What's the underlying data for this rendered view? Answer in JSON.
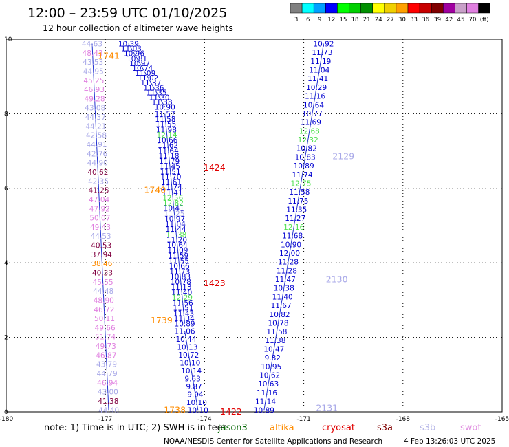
{
  "header": {
    "title": "12:00 – 23:59 UTC 01/10/2025",
    "subtitle": "12 hour collection of altimeter wave heights"
  },
  "legend": {
    "colors": [
      "#808080",
      "#00ffff",
      "#00a0ff",
      "#0000ff",
      "#00ff00",
      "#00d000",
      "#009000",
      "#ffff00",
      "#f0d000",
      "#ffa000",
      "#ff0000",
      "#c80000",
      "#800000",
      "#a000a0",
      "#c8a0c8",
      "#e080e0",
      "#000000"
    ],
    "labels": [
      "3",
      "6",
      "9",
      "12",
      "15",
      "18",
      "21",
      "24",
      "27",
      "30",
      "33",
      "36",
      "39",
      "42",
      "45",
      "70",
      "(ft)"
    ]
  },
  "axes": {
    "x_ticks": [
      "-180",
      "-177",
      "-174",
      "-171",
      "-168",
      "-165"
    ],
    "y_ticks": [
      "0",
      "2",
      "4",
      "6",
      "8",
      "10"
    ]
  },
  "footer": {
    "note": "note:  1) Time is in UTC;  2) SWH is in feet",
    "satellites": [
      {
        "name": "jason3",
        "color": "#006400"
      },
      {
        "name": "altika",
        "color": "#ff8c00"
      },
      {
        "name": "cryosat",
        "color": "#e00000"
      },
      {
        "name": "s3a",
        "color": "#800000"
      },
      {
        "name": "s3b",
        "color": "#b8b8e8"
      },
      {
        "name": "swot",
        "color": "#e090e0"
      }
    ],
    "credit": "NOAA/NESDIS Center for Satellite Applications and Research",
    "timestamp": "4 Feb 13:26:03 UTC 2025"
  },
  "chart_data": {
    "type": "scatter",
    "title": "12:00 – 23:59 UTC 01/10/2025",
    "subtitle": "12 hour collection of altimeter wave heights",
    "xlim": [
      -180,
      -165
    ],
    "ylim": [
      0,
      10
    ],
    "grid": true,
    "point_colors": {
      "B": "#0000d0",
      "G": "#50e050",
      "L": "#a8a8e8",
      "P": "#e080e0",
      "M": "#800040",
      "O": "#ff8c00",
      "R": "#e00000"
    },
    "tracks": [
      {
        "x_start": -176.3,
        "x_end": -175.2,
        "y_start": 9.88,
        "y_end": 8.18,
        "data": [
          [
            "10.39",
            "B"
          ],
          [
            "11.03",
            "B"
          ],
          [
            "10.96",
            "B"
          ],
          [
            "10.81",
            "B"
          ],
          [
            "10.97",
            "B"
          ],
          [
            "10.74",
            "B"
          ],
          [
            "11.09",
            "B"
          ],
          [
            "11.02",
            "B"
          ],
          [
            "11.37",
            "B"
          ],
          [
            "11.36",
            "B"
          ],
          [
            "11.35",
            "B"
          ],
          [
            "11.30",
            "B"
          ],
          [
            "11.38",
            "B"
          ],
          [
            "10.90",
            "B"
          ]
        ]
      },
      {
        "x_start": -175.2,
        "x_end": -174.6,
        "y_start": 8.0,
        "y_end": 2.37,
        "data": [
          [
            "11.57",
            "B"
          ],
          [
            "11.58",
            "B"
          ],
          [
            "11.55",
            "B"
          ],
          [
            "11.98",
            "B"
          ],
          [
            "12.14",
            "G"
          ],
          [
            "10.66",
            "B"
          ],
          [
            "11.62",
            "B"
          ],
          [
            "11.64",
            "B"
          ],
          [
            "11.18",
            "B"
          ],
          [
            "11.79",
            "B"
          ],
          [
            "11.45",
            "B"
          ],
          [
            "11.51",
            "B"
          ],
          [
            "11.70",
            "B"
          ],
          [
            "11.61",
            "B"
          ],
          [
            "11.74",
            "B"
          ],
          [
            "11.41",
            "B"
          ],
          [
            "12.56",
            "G"
          ],
          [
            "12.82",
            "G"
          ],
          [
            "10.41",
            "B"
          ],
          [
            "11.25",
            "L"
          ],
          [
            "10.97",
            "B"
          ],
          [
            "11.04",
            "B"
          ],
          [
            "11.44",
            "B"
          ],
          [
            "11.38",
            "G"
          ],
          [
            "11.20",
            "B"
          ],
          [
            "10.64",
            "B"
          ],
          [
            "11.09",
            "B"
          ],
          [
            "11.59",
            "B"
          ],
          [
            "11.55",
            "B"
          ],
          [
            "10.66",
            "B"
          ],
          [
            "11.73",
            "B"
          ],
          [
            "10.83",
            "B"
          ],
          [
            "10.78",
            "B"
          ],
          [
            "11.13",
            "B"
          ],
          [
            "11.40",
            "B"
          ],
          [
            "12.29",
            "G"
          ],
          [
            "11.56",
            "B"
          ],
          [
            "11.51",
            "B"
          ],
          [
            "11.43",
            "B"
          ],
          [
            "11.34",
            "B"
          ],
          [
            "10.89",
            "B"
          ]
        ]
      },
      {
        "x_start": -174.6,
        "x_end": -174.2,
        "y_start": 2.17,
        "y_end": 0.05,
        "data": [
          [
            "11.06",
            "B"
          ],
          [
            "10.44",
            "B"
          ],
          [
            "10.13",
            "B"
          ],
          [
            "10.72",
            "B"
          ],
          [
            "10.10",
            "B"
          ],
          [
            "10.14",
            "B"
          ],
          [
            "9.63",
            "B"
          ],
          [
            "9.87",
            "B"
          ],
          [
            "9.94",
            "B"
          ],
          [
            "10.10",
            "B"
          ],
          [
            "10.10",
            "B"
          ]
        ]
      },
      {
        "x_start": -177.4,
        "x_end": -176.9,
        "y_start": 9.88,
        "y_end": 0.05,
        "data": [
          [
            "44.63",
            "L"
          ],
          [
            "48.43",
            "P"
          ],
          [
            "43.53",
            "L"
          ],
          [
            "44.95",
            "L"
          ],
          [
            "45.25",
            "P"
          ],
          [
            "46.93",
            "P"
          ],
          [
            "49.28",
            "P"
          ],
          [
            "43.08",
            "L"
          ],
          [
            "44.37",
            "L"
          ],
          [
            "44.21",
            "L"
          ],
          [
            "42.58",
            "L"
          ],
          [
            "44.91",
            "L"
          ],
          [
            "42.76",
            "L"
          ],
          [
            "44.90",
            "L"
          ],
          [
            "40.62",
            "M"
          ],
          [
            "42.35",
            "L"
          ],
          [
            "41.25",
            "M"
          ],
          [
            "47.04",
            "P"
          ],
          [
            "47.92",
            "P"
          ],
          [
            "50.07",
            "P"
          ],
          [
            "49.43",
            "P"
          ],
          [
            "44.53",
            "L"
          ],
          [
            "40.53",
            "M"
          ],
          [
            "37.94",
            "M"
          ],
          [
            "38.46",
            "O"
          ],
          [
            "40.33",
            "M"
          ],
          [
            "45.55",
            "P"
          ],
          [
            "44.48",
            "L"
          ],
          [
            "48.90",
            "P"
          ],
          [
            "46.72",
            "P"
          ],
          [
            "50.11",
            "P"
          ],
          [
            "49.66",
            "P"
          ],
          [
            "51.74",
            "P"
          ],
          [
            "49.73",
            "P"
          ],
          [
            "46.87",
            "P"
          ],
          [
            "43.79",
            "L"
          ],
          [
            "44.79",
            "L"
          ],
          [
            "46.94",
            "P"
          ],
          [
            "43.00",
            "L"
          ],
          [
            "41.38",
            "M"
          ],
          [
            "44.40",
            "L"
          ]
        ]
      },
      {
        "x_start": -170.4,
        "x_end": -172.2,
        "y_start": 9.88,
        "y_end": 0.05,
        "data": [
          [
            "10.92",
            "B"
          ],
          [
            "11.73",
            "B"
          ],
          [
            "11.19",
            "B"
          ],
          [
            "11.04",
            "B"
          ],
          [
            "11.41",
            "B"
          ],
          [
            "10.29",
            "B"
          ],
          [
            "11.16",
            "B"
          ],
          [
            "10.64",
            "B"
          ],
          [
            "10.77",
            "B"
          ],
          [
            "11.69",
            "B"
          ],
          [
            "12.68",
            "G"
          ],
          [
            "12.32",
            "G"
          ],
          [
            "10.82",
            "B"
          ],
          [
            "10.83",
            "B"
          ],
          [
            "10.89",
            "B"
          ],
          [
            "11.74",
            "B"
          ],
          [
            "12.75",
            "G"
          ],
          [
            "11.58",
            "B"
          ],
          [
            "11.75",
            "B"
          ],
          [
            "11.35",
            "B"
          ],
          [
            "11.27",
            "B"
          ],
          [
            "12.16",
            "G"
          ],
          [
            "11.68",
            "B"
          ],
          [
            "10.90",
            "B"
          ],
          [
            "12.00",
            "B"
          ],
          [
            "11.28",
            "B"
          ],
          [
            "11.28",
            "B"
          ],
          [
            "11.47",
            "B"
          ],
          [
            "10.38",
            "B"
          ],
          [
            "11.40",
            "B"
          ],
          [
            "11.67",
            "B"
          ],
          [
            "10.82",
            "B"
          ],
          [
            "10.78",
            "B"
          ],
          [
            "11.58",
            "B"
          ],
          [
            "11.38",
            "B"
          ],
          [
            "10.47",
            "B"
          ],
          [
            "9.82",
            "B"
          ],
          [
            "10.95",
            "B"
          ],
          [
            "10.62",
            "B"
          ],
          [
            "10.63",
            "B"
          ],
          [
            "11.16",
            "B"
          ],
          [
            "11.14",
            "B"
          ],
          [
            "10.89",
            "B"
          ]
        ]
      }
    ],
    "time_labels": [
      {
        "text": "1741",
        "x": -176.9,
        "y": 9.55,
        "color": "O"
      },
      {
        "text": "1740",
        "x": -175.5,
        "y": 5.95,
        "color": "O"
      },
      {
        "text": "1739",
        "x": -175.3,
        "y": 2.45,
        "color": "O"
      },
      {
        "text": "1738",
        "x": -174.9,
        "y": 0.05,
        "color": "O"
      },
      {
        "text": "1424",
        "x": -173.7,
        "y": 6.55,
        "color": "R"
      },
      {
        "text": "1423",
        "x": -173.7,
        "y": 3.45,
        "color": "R"
      },
      {
        "text": "1422",
        "x": -173.2,
        "y": 0.0,
        "color": "R"
      },
      {
        "text": "2129",
        "x": -169.8,
        "y": 6.85,
        "color": "L"
      },
      {
        "text": "2130",
        "x": -170.0,
        "y": 3.55,
        "color": "L"
      },
      {
        "text": "2131",
        "x": -170.3,
        "y": 0.1,
        "color": "L"
      }
    ]
  }
}
